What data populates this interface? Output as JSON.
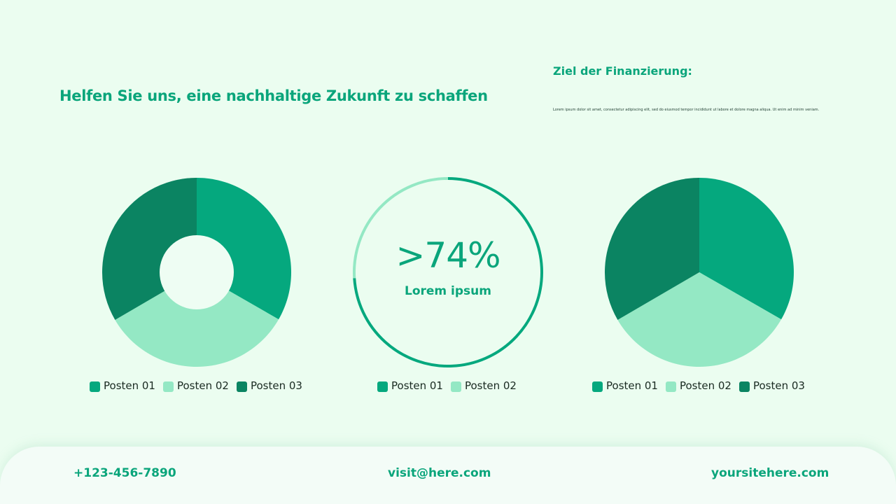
{
  "header": {
    "headline": "Helfen Sie uns, eine nachhaltige Zukunft zu schaffen",
    "goal_title": "Ziel der Finanzierung:",
    "goal_text": "Lorem ipsum dolor sit amet, consectetur adipiscing elit, sed do eiusmod tempor incididunt ut labore et dolore magna aliqua. Ut enim ad minim veniam."
  },
  "colors": {
    "background": "#EBFDF0",
    "primary": "#05A87E",
    "light": "#94E8C4",
    "dark": "#0B8462",
    "text_accent": "#0AA57B"
  },
  "center_ring": {
    "value": ">74%",
    "label": "Lorem ipsum"
  },
  "legends": {
    "left": [
      "Posten 01",
      "Posten 02",
      "Posten 03"
    ],
    "mid": [
      "Posten 01",
      "Posten 02"
    ],
    "right": [
      "Posten 01",
      "Posten 02",
      "Posten 03"
    ]
  },
  "footer": {
    "phone": "+123-456-7890",
    "email": "visit@here.com",
    "website": "yoursitehere.com"
  },
  "chart_data": [
    {
      "type": "pie",
      "variant": "donut",
      "title": "",
      "categories": [
        "Posten 01",
        "Posten 02",
        "Posten 03"
      ],
      "values": [
        33.3,
        33.3,
        33.4
      ],
      "colors": [
        "#05A87E",
        "#94E8C4",
        "#0B8462"
      ],
      "legend_position": "bottom"
    },
    {
      "type": "pie",
      "variant": "progress-ring",
      "title": ">74%",
      "subtitle": "Lorem ipsum",
      "categories": [
        "Posten 01",
        "Posten 02"
      ],
      "values": [
        74,
        26
      ],
      "colors": [
        "#05A87E",
        "#94E8C4"
      ],
      "legend_position": "bottom"
    },
    {
      "type": "pie",
      "variant": "pie",
      "title": "",
      "categories": [
        "Posten 01",
        "Posten 02",
        "Posten 03"
      ],
      "values": [
        33.3,
        33.3,
        33.4
      ],
      "colors": [
        "#05A87E",
        "#94E8C4",
        "#0B8462"
      ],
      "legend_position": "bottom"
    }
  ]
}
